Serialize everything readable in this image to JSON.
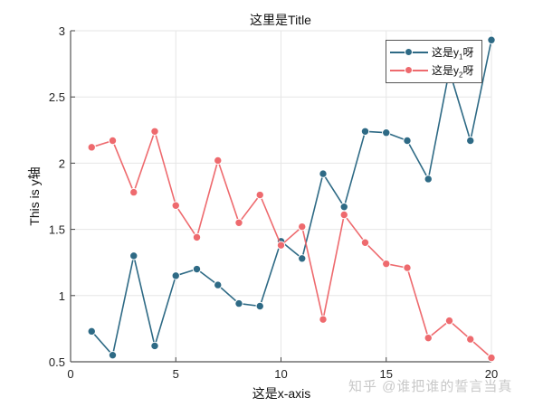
{
  "chart_data": {
    "type": "line",
    "title": "这里是Title",
    "xlabel": "这是x-axis",
    "ylabel": "This is y轴",
    "xlim": [
      0,
      20
    ],
    "ylim": [
      0.5,
      3
    ],
    "xticks": [
      0,
      5,
      10,
      15,
      20
    ],
    "yticks": [
      0.5,
      1,
      1.5,
      2,
      2.5,
      3
    ],
    "ytick_labels": [
      "0.5",
      "1",
      "1.5",
      "2",
      "2.5",
      "3"
    ],
    "grid": true,
    "legend_position": "upper right",
    "x": [
      1,
      2,
      3,
      4,
      5,
      6,
      7,
      8,
      9,
      10,
      11,
      12,
      13,
      14,
      15,
      16,
      17,
      18,
      19,
      20
    ],
    "series": [
      {
        "name": "这是y1呀",
        "legend_base": "这是y",
        "legend_sub": "1",
        "legend_suffix": "呀",
        "color": "#2E6A85",
        "values": [
          0.73,
          0.55,
          1.3,
          0.62,
          1.15,
          1.2,
          1.08,
          0.94,
          0.92,
          1.41,
          1.28,
          1.92,
          1.67,
          2.24,
          2.23,
          2.17,
          1.88,
          2.7,
          2.17,
          2.93
        ]
      },
      {
        "name": "这是y2呀",
        "legend_base": "这是y",
        "legend_sub": "2",
        "legend_suffix": "呀",
        "color": "#EE6A6E",
        "values": [
          2.12,
          2.17,
          1.78,
          2.24,
          1.68,
          1.44,
          2.02,
          1.55,
          1.76,
          1.38,
          1.52,
          0.82,
          1.61,
          1.4,
          1.24,
          1.21,
          0.68,
          0.81,
          0.67,
          0.53
        ]
      }
    ]
  },
  "watermark": "知乎 @谁把谁的誓言当真"
}
